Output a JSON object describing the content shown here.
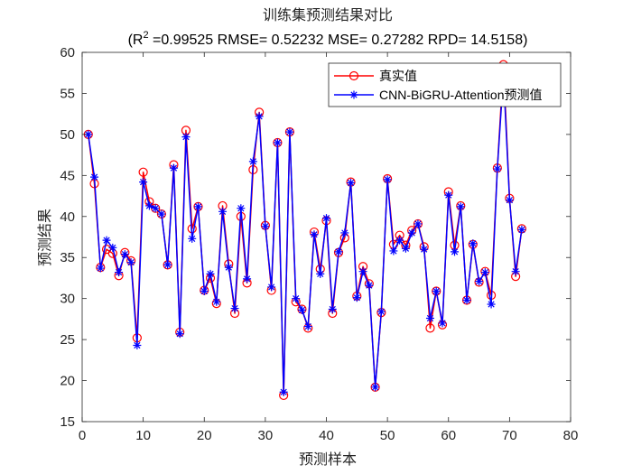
{
  "chart_data": {
    "type": "line",
    "title": "训练集预测结果对比",
    "subtitle": {
      "r2_prefix": "(R",
      "r2_sup": "2",
      "rest": " =0.99525 RMSE= 0.52232 MSE= 0.27282 RPD= 14.5158)"
    },
    "xlabel": "预测样本",
    "ylabel": "预测结果",
    "xlim": [
      0,
      80
    ],
    "ylim": [
      15,
      60
    ],
    "xticks": [
      0,
      10,
      20,
      30,
      40,
      50,
      60,
      70,
      80
    ],
    "yticks": [
      15,
      20,
      25,
      30,
      35,
      40,
      45,
      50,
      55,
      60
    ],
    "grid": false,
    "legend_position": "top-right",
    "x": [
      1,
      2,
      3,
      4,
      5,
      6,
      7,
      8,
      9,
      10,
      11,
      12,
      13,
      14,
      15,
      16,
      17,
      18,
      19,
      20,
      21,
      22,
      23,
      24,
      25,
      26,
      27,
      28,
      29,
      30,
      31,
      32,
      33,
      34,
      35,
      36,
      37,
      38,
      39,
      40,
      41,
      42,
      43,
      44,
      45,
      46,
      47,
      48,
      49,
      50,
      51,
      52,
      53,
      54,
      55,
      56,
      57,
      58,
      59,
      60,
      61,
      62,
      63,
      64,
      65,
      66,
      67,
      68,
      69,
      70,
      71,
      72
    ],
    "series": [
      {
        "name": "真实值",
        "color": "#ff0000",
        "marker": "circle",
        "values": [
          50.0,
          44.0,
          33.8,
          36.0,
          35.5,
          32.8,
          35.6,
          34.6,
          25.2,
          45.4,
          41.8,
          41.0,
          40.3,
          34.1,
          46.3,
          25.9,
          50.5,
          38.5,
          41.2,
          31.0,
          32.5,
          29.4,
          41.3,
          34.2,
          28.2,
          40.0,
          31.9,
          45.7,
          52.7,
          38.9,
          31.0,
          49.0,
          18.2,
          50.3,
          29.6,
          28.7,
          26.4,
          38.1,
          33.6,
          39.5,
          28.2,
          35.6,
          37.4,
          44.2,
          30.3,
          33.9,
          31.8,
          19.2,
          28.3,
          44.6,
          36.6,
          37.7,
          36.5,
          38.3,
          39.1,
          36.3,
          26.4,
          30.9,
          26.8,
          43.0,
          36.5,
          41.3,
          29.8,
          36.6,
          32.0,
          33.3,
          30.4,
          45.9,
          58.5,
          42.2,
          32.7,
          38.5
        ]
      },
      {
        "name": "CNN-BiGRU-Attention预测值",
        "color": "#0000ff",
        "marker": "asterisk",
        "values": [
          50.0,
          44.8,
          33.7,
          37.1,
          36.2,
          33.2,
          35.4,
          34.4,
          24.3,
          44.2,
          41.3,
          41.0,
          40.3,
          34.1,
          45.9,
          25.7,
          49.7,
          37.3,
          41.2,
          30.9,
          33.0,
          29.6,
          40.6,
          33.8,
          28.8,
          41.0,
          32.4,
          46.7,
          52.2,
          38.8,
          31.4,
          49.0,
          18.6,
          50.3,
          30.0,
          28.6,
          26.6,
          37.8,
          33.0,
          39.8,
          28.7,
          35.7,
          38.0,
          44.1,
          30.1,
          33.3,
          31.6,
          19.2,
          28.4,
          44.5,
          35.8,
          37.1,
          36.1,
          38.0,
          39.1,
          36.0,
          27.6,
          30.9,
          27.0,
          42.6,
          35.7,
          41.2,
          29.8,
          36.7,
          32.1,
          33.2,
          29.3,
          45.8,
          57.3,
          42.0,
          33.3,
          38.4
        ]
      }
    ]
  }
}
